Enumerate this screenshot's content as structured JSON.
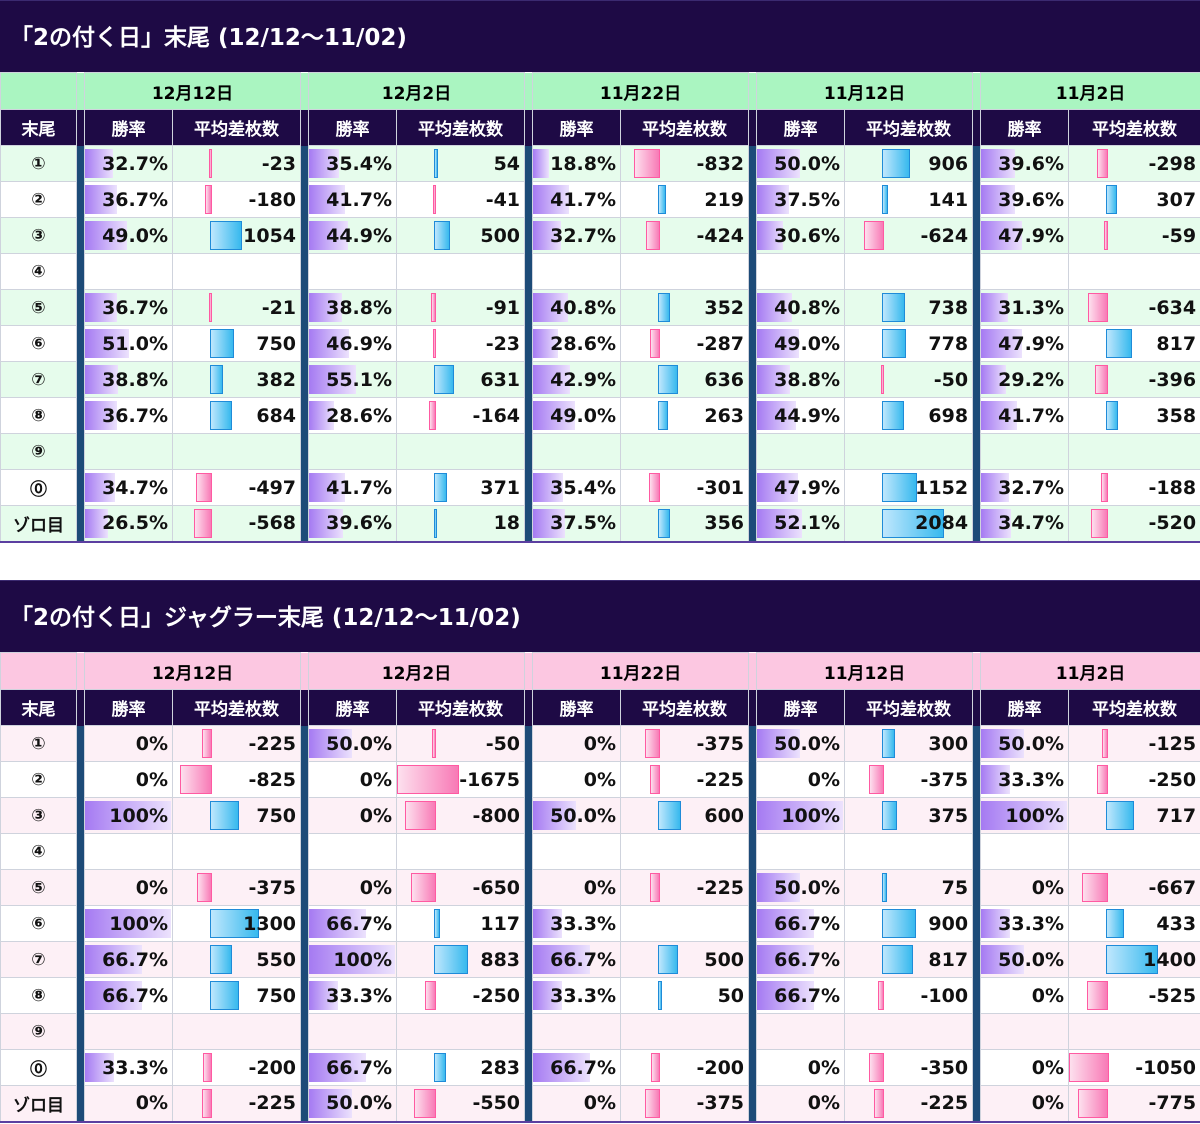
{
  "colors": {
    "title_bg": "#1e0a45",
    "header_bg": "#1e0a45",
    "separator": "#1d4b78",
    "green_date": "#aaf5c1",
    "green_alt": "#e6fcec",
    "pink_date": "#fcc7e1",
    "pink_alt": "#fdf0f6",
    "rate_bar": "#a57af2",
    "pos_bar": "#37b9ee",
    "neg_bar": "#f87ab6"
  },
  "sections": [
    {
      "title": "「2の付く日」末尾 (12/12～11/02)",
      "dates": [
        "12月12日",
        "12月2日",
        "11月22日",
        "11月12日",
        "11月2日"
      ],
      "col_label": "末尾",
      "rate_label": "勝率",
      "diff_label": "平均差枚数",
      "scale_max": 2084,
      "rows": [
        {
          "label": "①",
          "cells": [
            {
              "rate": "32.7%",
              "diff": "-23"
            },
            {
              "rate": "35.4%",
              "diff": "54"
            },
            {
              "rate": "18.8%",
              "diff": "-832"
            },
            {
              "rate": "50.0%",
              "diff": "906"
            },
            {
              "rate": "39.6%",
              "diff": "-298"
            }
          ]
        },
        {
          "label": "②",
          "cells": [
            {
              "rate": "36.7%",
              "diff": "-180"
            },
            {
              "rate": "41.7%",
              "diff": "-41"
            },
            {
              "rate": "41.7%",
              "diff": "219"
            },
            {
              "rate": "37.5%",
              "diff": "141"
            },
            {
              "rate": "39.6%",
              "diff": "307"
            }
          ]
        },
        {
          "label": "③",
          "cells": [
            {
              "rate": "49.0%",
              "diff": "1054"
            },
            {
              "rate": "44.9%",
              "diff": "500"
            },
            {
              "rate": "32.7%",
              "diff": "-424"
            },
            {
              "rate": "30.6%",
              "diff": "-624"
            },
            {
              "rate": "47.9%",
              "diff": "-59"
            }
          ]
        },
        {
          "label": "④",
          "cells": [
            {
              "rate": "",
              "diff": ""
            },
            {
              "rate": "",
              "diff": ""
            },
            {
              "rate": "",
              "diff": ""
            },
            {
              "rate": "",
              "diff": ""
            },
            {
              "rate": "",
              "diff": ""
            }
          ]
        },
        {
          "label": "⑤",
          "cells": [
            {
              "rate": "36.7%",
              "diff": "-21"
            },
            {
              "rate": "38.8%",
              "diff": "-91"
            },
            {
              "rate": "40.8%",
              "diff": "352"
            },
            {
              "rate": "40.8%",
              "diff": "738"
            },
            {
              "rate": "31.3%",
              "diff": "-634"
            }
          ]
        },
        {
          "label": "⑥",
          "cells": [
            {
              "rate": "51.0%",
              "diff": "750"
            },
            {
              "rate": "46.9%",
              "diff": "-23"
            },
            {
              "rate": "28.6%",
              "diff": "-287"
            },
            {
              "rate": "49.0%",
              "diff": "778"
            },
            {
              "rate": "47.9%",
              "diff": "817"
            }
          ]
        },
        {
          "label": "⑦",
          "cells": [
            {
              "rate": "38.8%",
              "diff": "382"
            },
            {
              "rate": "55.1%",
              "diff": "631"
            },
            {
              "rate": "42.9%",
              "diff": "636"
            },
            {
              "rate": "38.8%",
              "diff": "-50"
            },
            {
              "rate": "29.2%",
              "diff": "-396"
            }
          ]
        },
        {
          "label": "⑧",
          "cells": [
            {
              "rate": "36.7%",
              "diff": "684"
            },
            {
              "rate": "28.6%",
              "diff": "-164"
            },
            {
              "rate": "49.0%",
              "diff": "263"
            },
            {
              "rate": "44.9%",
              "diff": "698"
            },
            {
              "rate": "41.7%",
              "diff": "358"
            }
          ]
        },
        {
          "label": "⑨",
          "cells": [
            {
              "rate": "",
              "diff": ""
            },
            {
              "rate": "",
              "diff": ""
            },
            {
              "rate": "",
              "diff": ""
            },
            {
              "rate": "",
              "diff": ""
            },
            {
              "rate": "",
              "diff": ""
            }
          ]
        },
        {
          "label": "⓪",
          "cells": [
            {
              "rate": "34.7%",
              "diff": "-497"
            },
            {
              "rate": "41.7%",
              "diff": "371"
            },
            {
              "rate": "35.4%",
              "diff": "-301"
            },
            {
              "rate": "47.9%",
              "diff": "1152"
            },
            {
              "rate": "32.7%",
              "diff": "-188"
            }
          ]
        },
        {
          "label": "ゾロ目",
          "cells": [
            {
              "rate": "26.5%",
              "diff": "-568"
            },
            {
              "rate": "39.6%",
              "diff": "18"
            },
            {
              "rate": "37.5%",
              "diff": "356"
            },
            {
              "rate": "52.1%",
              "diff": "2084"
            },
            {
              "rate": "34.7%",
              "diff": "-520"
            }
          ]
        }
      ]
    },
    {
      "title": "「2の付く日」ジャグラー末尾 (12/12～11/02)",
      "dates": [
        "12月12日",
        "12月2日",
        "11月22日",
        "11月12日",
        "11月2日"
      ],
      "col_label": "末尾",
      "rate_label": "勝率",
      "diff_label": "平均差枚数",
      "scale_max": 1675,
      "rows": [
        {
          "label": "①",
          "cells": [
            {
              "rate": "0%",
              "diff": "-225"
            },
            {
              "rate": "50.0%",
              "diff": "-50"
            },
            {
              "rate": "0%",
              "diff": "-375"
            },
            {
              "rate": "50.0%",
              "diff": "300"
            },
            {
              "rate": "50.0%",
              "diff": "-125"
            }
          ]
        },
        {
          "label": "②",
          "cells": [
            {
              "rate": "0%",
              "diff": "-825"
            },
            {
              "rate": "0%",
              "diff": "-1675"
            },
            {
              "rate": "0%",
              "diff": "-225"
            },
            {
              "rate": "0%",
              "diff": "-375"
            },
            {
              "rate": "33.3%",
              "diff": "-250"
            }
          ]
        },
        {
          "label": "③",
          "cells": [
            {
              "rate": "100%",
              "diff": "750"
            },
            {
              "rate": "0%",
              "diff": "-800"
            },
            {
              "rate": "50.0%",
              "diff": "600"
            },
            {
              "rate": "100%",
              "diff": "375"
            },
            {
              "rate": "100%",
              "diff": "717"
            }
          ]
        },
        {
          "label": "④",
          "cells": [
            {
              "rate": "",
              "diff": ""
            },
            {
              "rate": "",
              "diff": ""
            },
            {
              "rate": "",
              "diff": ""
            },
            {
              "rate": "",
              "diff": ""
            },
            {
              "rate": "",
              "diff": ""
            }
          ]
        },
        {
          "label": "⑤",
          "cells": [
            {
              "rate": "0%",
              "diff": "-375"
            },
            {
              "rate": "0%",
              "diff": "-650"
            },
            {
              "rate": "0%",
              "diff": "-225"
            },
            {
              "rate": "50.0%",
              "diff": "75"
            },
            {
              "rate": "0%",
              "diff": "-667"
            }
          ]
        },
        {
          "label": "⑥",
          "cells": [
            {
              "rate": "100%",
              "diff": "1300"
            },
            {
              "rate": "66.7%",
              "diff": "117"
            },
            {
              "rate": "33.3%",
              "diff": ""
            },
            {
              "rate": "66.7%",
              "diff": "900"
            },
            {
              "rate": "33.3%",
              "diff": "433"
            }
          ]
        },
        {
          "label": "⑦",
          "cells": [
            {
              "rate": "66.7%",
              "diff": "550"
            },
            {
              "rate": "100%",
              "diff": "883"
            },
            {
              "rate": "66.7%",
              "diff": "500"
            },
            {
              "rate": "66.7%",
              "diff": "817"
            },
            {
              "rate": "50.0%",
              "diff": "1400"
            }
          ]
        },
        {
          "label": "⑧",
          "cells": [
            {
              "rate": "66.7%",
              "diff": "750"
            },
            {
              "rate": "33.3%",
              "diff": "-250"
            },
            {
              "rate": "33.3%",
              "diff": "50"
            },
            {
              "rate": "66.7%",
              "diff": "-100"
            },
            {
              "rate": "0%",
              "diff": "-525"
            }
          ]
        },
        {
          "label": "⑨",
          "cells": [
            {
              "rate": "",
              "diff": ""
            },
            {
              "rate": "",
              "diff": ""
            },
            {
              "rate": "",
              "diff": ""
            },
            {
              "rate": "",
              "diff": ""
            },
            {
              "rate": "",
              "diff": ""
            }
          ]
        },
        {
          "label": "⓪",
          "cells": [
            {
              "rate": "33.3%",
              "diff": "-200"
            },
            {
              "rate": "66.7%",
              "diff": "283"
            },
            {
              "rate": "66.7%",
              "diff": "-200"
            },
            {
              "rate": "0%",
              "diff": "-350"
            },
            {
              "rate": "0%",
              "diff": "-1050"
            }
          ]
        },
        {
          "label": "ゾロ目",
          "cells": [
            {
              "rate": "0%",
              "diff": "-225"
            },
            {
              "rate": "50.0%",
              "diff": "-550"
            },
            {
              "rate": "0%",
              "diff": "-375"
            },
            {
              "rate": "0%",
              "diff": "-225"
            },
            {
              "rate": "0%",
              "diff": "-775"
            }
          ]
        }
      ]
    }
  ]
}
